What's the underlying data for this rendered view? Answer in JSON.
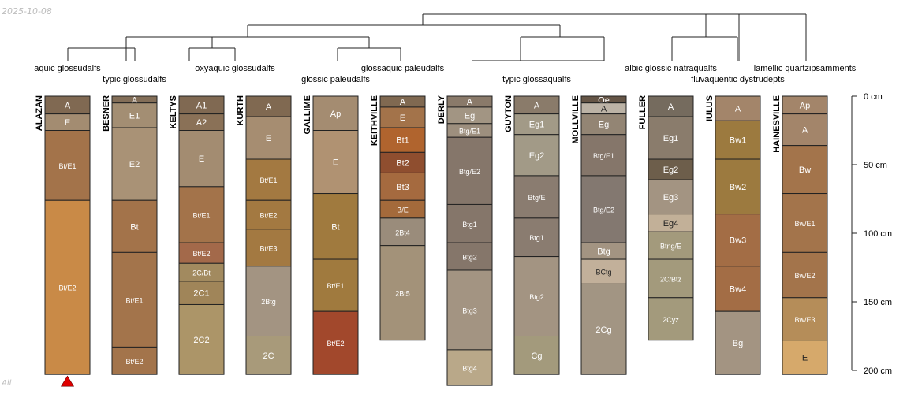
{
  "chart_data": {
    "type": "soil_profile_sketch",
    "date_stamp": "2025-10-08",
    "corner_label": "All",
    "depth_axis": {
      "units": "cm",
      "max": 200,
      "ticks": [
        0,
        50,
        100,
        150,
        200
      ],
      "tick_labels": [
        "0 cm",
        "50 cm",
        "100 cm",
        "150 cm",
        "200 cm"
      ]
    },
    "groups": [
      {
        "label": "aquic glossudalfs",
        "profiles": [
          "ALAZAN"
        ]
      },
      {
        "label": "typic glossudalfs",
        "profiles": [
          "BESNER"
        ]
      },
      {
        "label": "oxyaquic glossudalfs",
        "profiles": [
          "KELTYS",
          "KURTH"
        ]
      },
      {
        "label": "glossic paleudalfs",
        "profiles": [
          "GALLIME"
        ]
      },
      {
        "label": "glossaquic paleudalfs",
        "profiles": [
          "KEITHVILLE"
        ]
      },
      {
        "label": "typic glossaqualfs",
        "profiles": [
          "DERLY",
          "GUYTON",
          "MOLLVILLE"
        ]
      },
      {
        "label": "albic glossic natraqualfs",
        "profiles": [
          "FULLER"
        ]
      },
      {
        "label": "fluvaquentic dystrudepts",
        "profiles": [
          "IULUS"
        ]
      },
      {
        "label": "lamellic quartzipsamments",
        "profiles": [
          "HAINESVILLE"
        ]
      }
    ],
    "profiles": [
      {
        "name": "ALAZAN",
        "horizons": [
          {
            "name": "A",
            "top": 0,
            "bottom": 13,
            "color": "#806952"
          },
          {
            "name": "E",
            "top": 13,
            "bottom": 25,
            "color": "#a38c71"
          },
          {
            "name": "Bt/E1",
            "top": 25,
            "bottom": 76,
            "color": "#a3734a"
          },
          {
            "name": "Bt/E2",
            "top": 76,
            "bottom": 203,
            "color": "#c98a47"
          }
        ]
      },
      {
        "name": "BESNER",
        "horizons": [
          {
            "name": "A",
            "top": 0,
            "bottom": 5,
            "color": "#836e58"
          },
          {
            "name": "E1",
            "top": 5,
            "bottom": 23,
            "color": "#a38e73"
          },
          {
            "name": "E2",
            "top": 23,
            "bottom": 76,
            "color": "#a99276"
          },
          {
            "name": "Bt",
            "top": 76,
            "bottom": 114,
            "color": "#a3734a"
          },
          {
            "name": "Bt/E1",
            "top": 114,
            "bottom": 183,
            "color": "#a3744b"
          },
          {
            "name": "Bt/E2",
            "top": 183,
            "bottom": 203,
            "color": "#a3744b"
          }
        ]
      },
      {
        "name": "KELTYS",
        "horizons": [
          {
            "name": "A1",
            "top": 0,
            "bottom": 13,
            "color": "#806952"
          },
          {
            "name": "A2",
            "top": 13,
            "bottom": 25,
            "color": "#8a7157"
          },
          {
            "name": "E",
            "top": 25,
            "bottom": 66,
            "color": "#a38c71"
          },
          {
            "name": "Bt/E1",
            "top": 66,
            "bottom": 107,
            "color": "#a3734a"
          },
          {
            "name": "Bt/E2",
            "top": 107,
            "bottom": 122,
            "color": "#a3694a"
          },
          {
            "name": "2C/Bt",
            "top": 122,
            "bottom": 135,
            "color": "#a28a5f"
          },
          {
            "name": "2C1",
            "top": 135,
            "bottom": 152,
            "color": "#a08559"
          },
          {
            "name": "2C2",
            "top": 152,
            "bottom": 203,
            "color": "#ac9568"
          }
        ]
      },
      {
        "name": "KURTH",
        "horizons": [
          {
            "name": "A",
            "top": 0,
            "bottom": 15,
            "color": "#806951"
          },
          {
            "name": "E",
            "top": 15,
            "bottom": 46,
            "color": "#a68d71"
          },
          {
            "name": "Bt/E1",
            "top": 46,
            "bottom": 76,
            "color": "#a37941"
          },
          {
            "name": "Bt/E2",
            "top": 76,
            "bottom": 97,
            "color": "#a37941"
          },
          {
            "name": "Bt/E3",
            "top": 97,
            "bottom": 124,
            "color": "#a37941"
          },
          {
            "name": "2Btg",
            "top": 124,
            "bottom": 175,
            "color": "#a39482"
          },
          {
            "name": "2C",
            "top": 175,
            "bottom": 203,
            "color": "#a89a7a"
          }
        ]
      },
      {
        "name": "GALLIME",
        "horizons": [
          {
            "name": "Ap",
            "top": 0,
            "bottom": 25,
            "color": "#a48c71"
          },
          {
            "name": "E",
            "top": 25,
            "bottom": 71,
            "color": "#b09272"
          },
          {
            "name": "Bt",
            "top": 71,
            "bottom": 119,
            "color": "#a07a3e"
          },
          {
            "name": "Bt/E1",
            "top": 119,
            "bottom": 157,
            "color": "#a07a3e"
          },
          {
            "name": "Bt/E2",
            "top": 157,
            "bottom": 203,
            "color": "#a2482c"
          }
        ]
      },
      {
        "name": "KEITHVILLE",
        "horizons": [
          {
            "name": "A",
            "top": 0,
            "bottom": 8,
            "color": "#806951"
          },
          {
            "name": "E",
            "top": 8,
            "bottom": 23,
            "color": "#a3734a"
          },
          {
            "name": "Bt1",
            "top": 23,
            "bottom": 41,
            "color": "#b0642e"
          },
          {
            "name": "Bt2",
            "top": 41,
            "bottom": 56,
            "color": "#8f4e2f"
          },
          {
            "name": "Bt3",
            "top": 56,
            "bottom": 76,
            "color": "#a56a3f"
          },
          {
            "name": "B/E",
            "top": 76,
            "bottom": 89,
            "color": "#a46a3b"
          },
          {
            "name": "2Bt4",
            "top": 89,
            "bottom": 109,
            "color": "#9a8c7b"
          },
          {
            "name": "2Bt5",
            "top": 109,
            "bottom": 178,
            "color": "#a39279"
          }
        ]
      },
      {
        "name": "DERLY",
        "horizons": [
          {
            "name": "A",
            "top": 0,
            "bottom": 8,
            "color": "#8a7a6a"
          },
          {
            "name": "Eg",
            "top": 8,
            "bottom": 20,
            "color": "#a29583"
          },
          {
            "name": "Btg/E1",
            "top": 20,
            "bottom": 30,
            "color": "#9d8f7e"
          },
          {
            "name": "Btg/E2",
            "top": 30,
            "bottom": 79,
            "color": "#85766a"
          },
          {
            "name": "Btg1",
            "top": 79,
            "bottom": 107,
            "color": "#85766a"
          },
          {
            "name": "Btg2",
            "top": 107,
            "bottom": 127,
            "color": "#85766a"
          },
          {
            "name": "Btg3",
            "top": 127,
            "bottom": 185,
            "color": "#a39482"
          },
          {
            "name": "Btg4",
            "top": 185,
            "bottom": 211,
            "color": "#b9a889"
          }
        ]
      },
      {
        "name": "GUYTON",
        "horizons": [
          {
            "name": "A",
            "top": 0,
            "bottom": 13,
            "color": "#8a7b6a"
          },
          {
            "name": "Eg1",
            "top": 13,
            "bottom": 28,
            "color": "#a29a87"
          },
          {
            "name": "Eg2",
            "top": 28,
            "bottom": 58,
            "color": "#a29a87"
          },
          {
            "name": "Btg/E",
            "top": 58,
            "bottom": 89,
            "color": "#8a7c70"
          },
          {
            "name": "Btg1",
            "top": 89,
            "bottom": 117,
            "color": "#8a7c70"
          },
          {
            "name": "Btg2",
            "top": 117,
            "bottom": 175,
            "color": "#a39482"
          },
          {
            "name": "Cg",
            "top": 175,
            "bottom": 203,
            "color": "#a39a7c"
          }
        ]
      },
      {
        "name": "MOLLVILLE",
        "horizons": [
          {
            "name": "Oe",
            "top": 0,
            "bottom": 5,
            "color": "#655546"
          },
          {
            "name": "A",
            "top": 5,
            "bottom": 13,
            "color": "#bcb3a6"
          },
          {
            "name": "Eg",
            "top": 13,
            "bottom": 28,
            "color": "#938574"
          },
          {
            "name": "Btg/E1",
            "top": 28,
            "bottom": 58,
            "color": "#85766a"
          },
          {
            "name": "Btg/E2",
            "top": 58,
            "bottom": 107,
            "color": "#837870"
          },
          {
            "name": "Btg",
            "top": 107,
            "bottom": 119,
            "color": "#a39482"
          },
          {
            "name": "BCtg",
            "top": 119,
            "bottom": 137,
            "color": "#c2b09a"
          },
          {
            "name": "2Cg",
            "top": 137,
            "bottom": 203,
            "color": "#a29583"
          }
        ]
      },
      {
        "name": "FULLER",
        "horizons": [
          {
            "name": "A",
            "top": 0,
            "bottom": 15,
            "color": "#756b5e"
          },
          {
            "name": "Eg1",
            "top": 15,
            "bottom": 46,
            "color": "#8a7c6c"
          },
          {
            "name": "Eg2",
            "top": 46,
            "bottom": 61,
            "color": "#6d5e4b"
          },
          {
            "name": "Eg3",
            "top": 61,
            "bottom": 86,
            "color": "#a39482"
          },
          {
            "name": "Eg4",
            "top": 86,
            "bottom": 99,
            "color": "#c2b098"
          },
          {
            "name": "Btng/E",
            "top": 99,
            "bottom": 119,
            "color": "#a39a7c"
          },
          {
            "name": "2C/Btz",
            "top": 119,
            "bottom": 147,
            "color": "#a39a7c"
          },
          {
            "name": "2Cyz",
            "top": 147,
            "bottom": 178,
            "color": "#a39a7c"
          }
        ]
      },
      {
        "name": "IULUS",
        "horizons": [
          {
            "name": "A",
            "top": 0,
            "bottom": 18,
            "color": "#a3856a"
          },
          {
            "name": "Bw1",
            "top": 18,
            "bottom": 46,
            "color": "#9c7a3f"
          },
          {
            "name": "Bw2",
            "top": 46,
            "bottom": 86,
            "color": "#9c7a3f"
          },
          {
            "name": "Bw3",
            "top": 86,
            "bottom": 124,
            "color": "#a36d45"
          },
          {
            "name": "Bw4",
            "top": 124,
            "bottom": 157,
            "color": "#a36d45"
          },
          {
            "name": "Bg",
            "top": 157,
            "bottom": 203,
            "color": "#a39482"
          }
        ]
      },
      {
        "name": "HAINESVILLE",
        "horizons": [
          {
            "name": "Ap",
            "top": 0,
            "bottom": 13,
            "color": "#a3856a"
          },
          {
            "name": "A",
            "top": 13,
            "bottom": 36,
            "color": "#a3856a"
          },
          {
            "name": "Bw",
            "top": 36,
            "bottom": 71,
            "color": "#a3744b"
          },
          {
            "name": "Bw/E1",
            "top": 71,
            "bottom": 114,
            "color": "#a3744b"
          },
          {
            "name": "Bw/E2",
            "top": 114,
            "bottom": 147,
            "color": "#a3744b"
          },
          {
            "name": "Bw/E3",
            "top": 147,
            "bottom": 178,
            "color": "#b58d59"
          },
          {
            "name": "E",
            "top": 178,
            "bottom": 203,
            "color": "#d6a96b"
          }
        ]
      }
    ],
    "truncated_profiles": [
      "ALAZAN"
    ],
    "marker_color": "#e00000"
  }
}
